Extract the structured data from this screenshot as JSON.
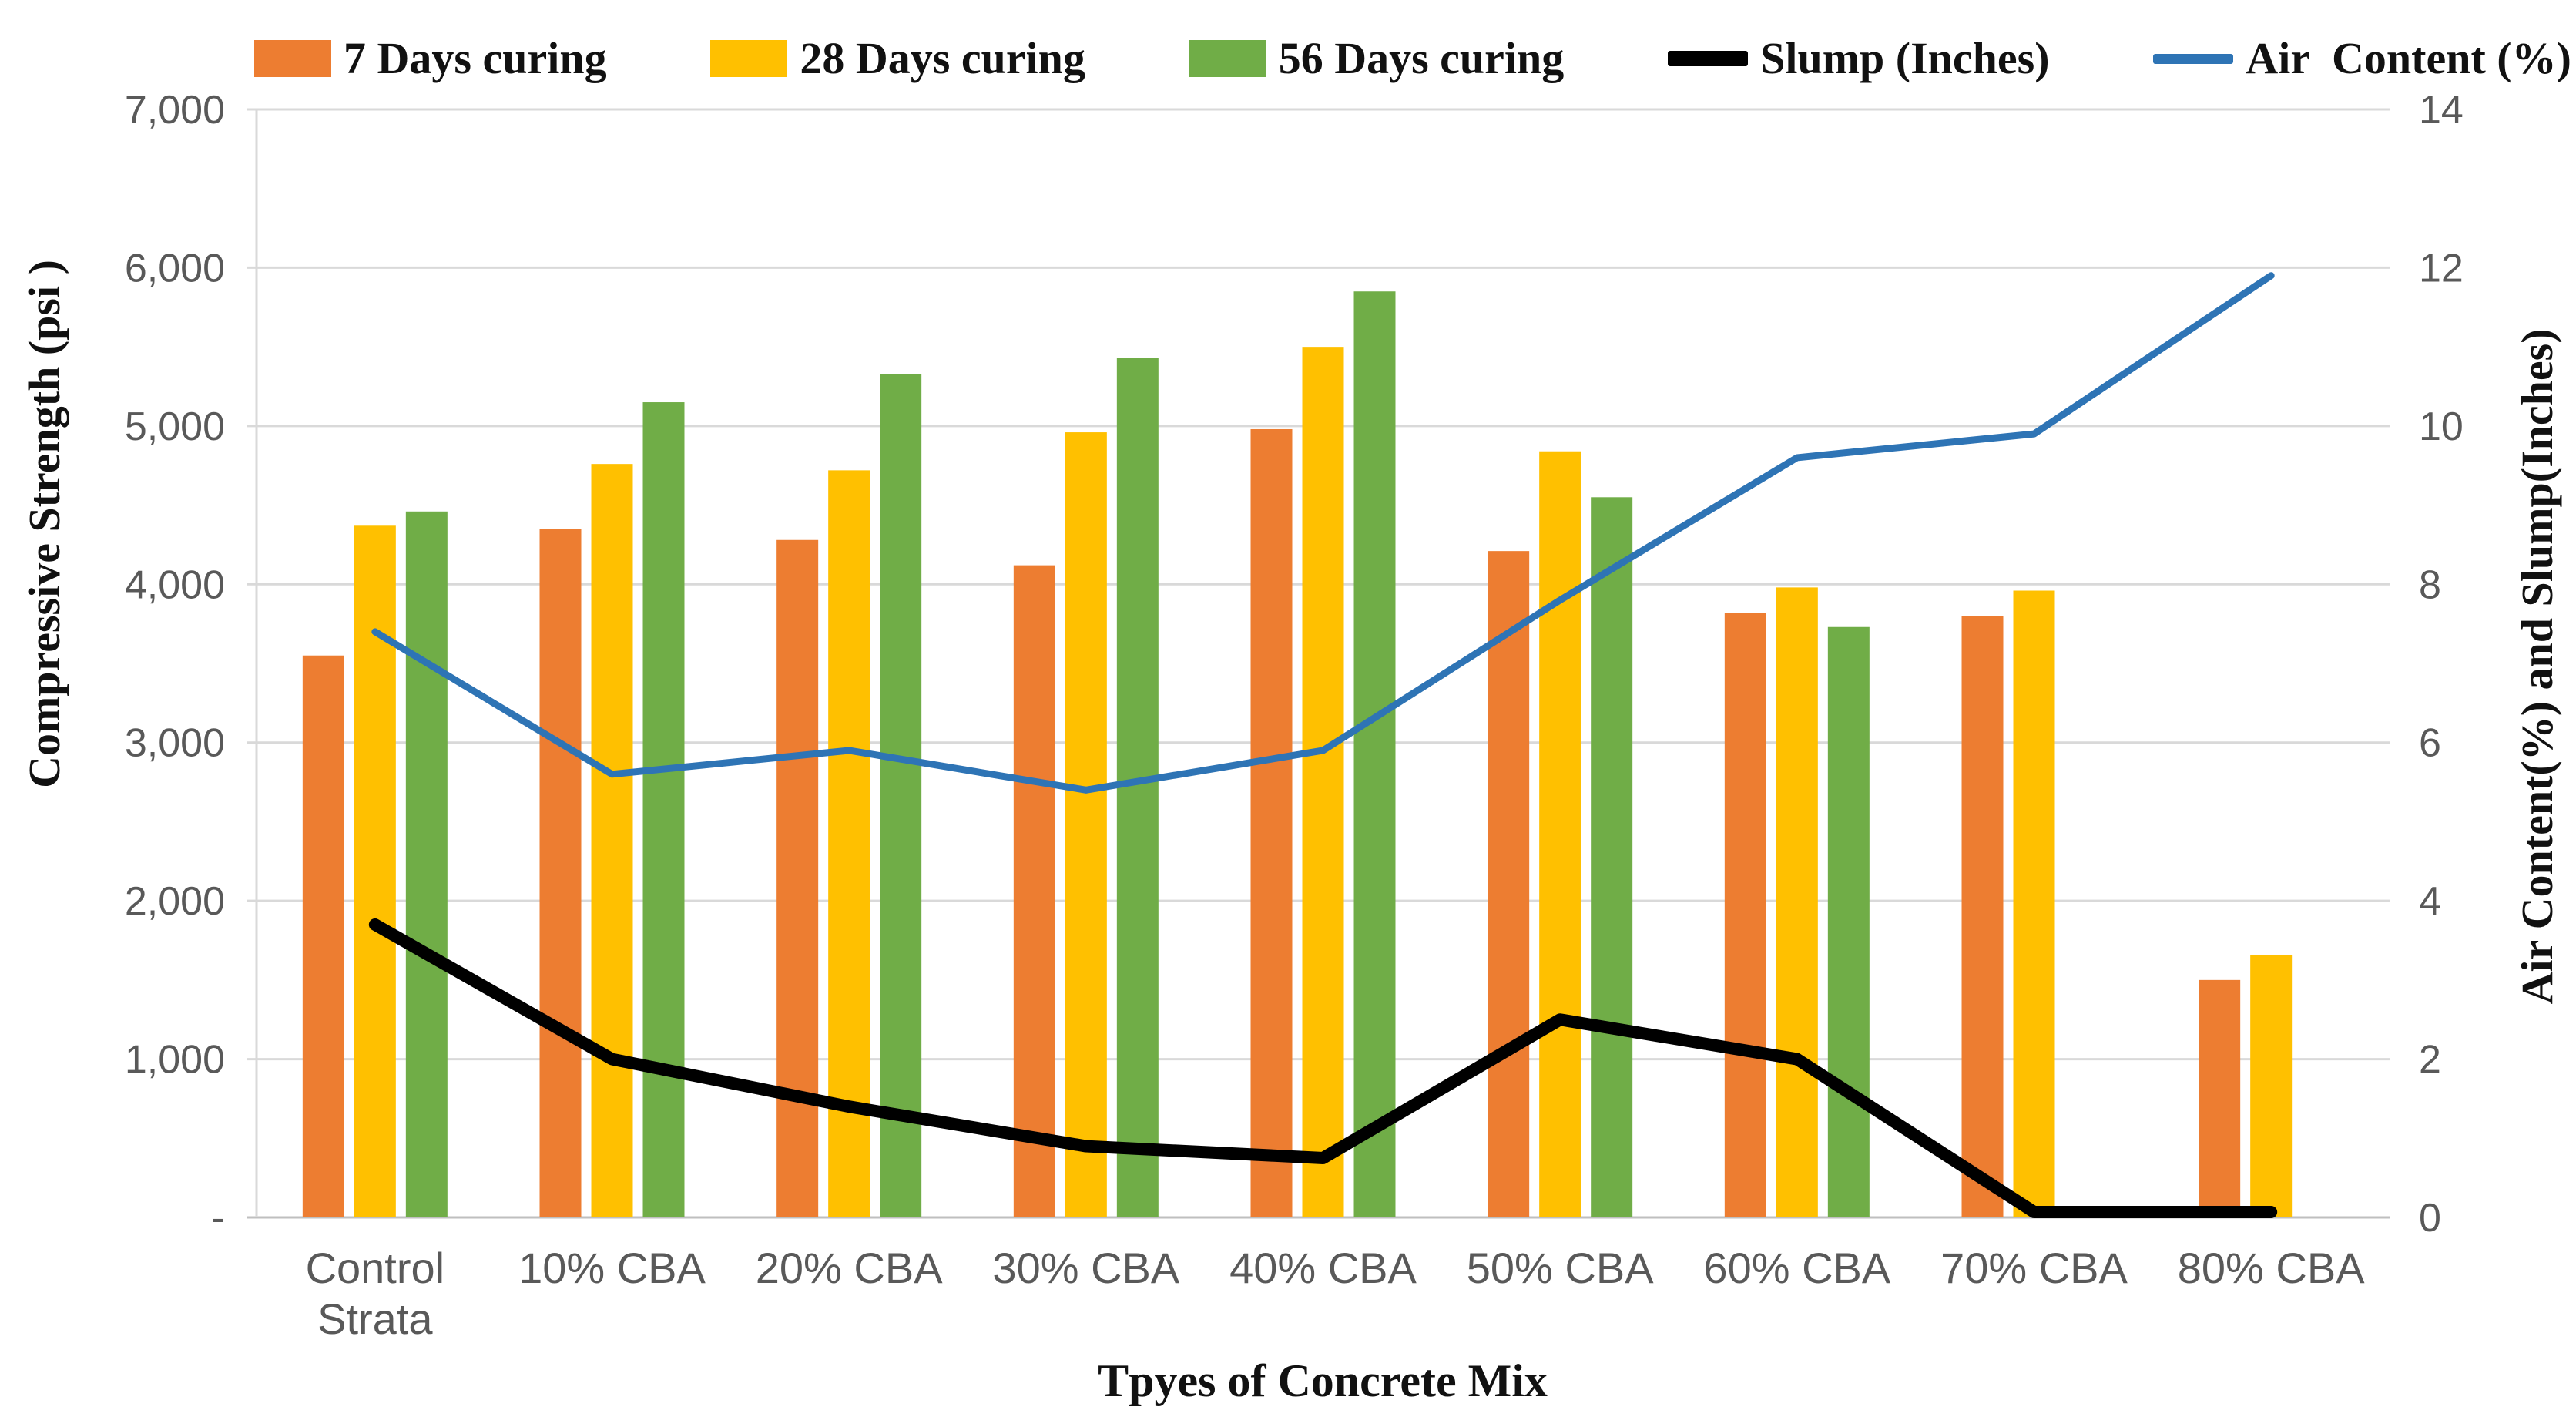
{
  "chart_data": {
    "type": "bar",
    "subtype": "grouped-bars-with-overlaid-lines",
    "categories": [
      "Control\nStrata",
      "10% CBA",
      "20% CBA",
      "30% CBA",
      "40% CBA",
      "50% CBA",
      "60% CBA",
      "70% CBA",
      "80% CBA"
    ],
    "series": [
      {
        "name": "7 Days curing",
        "type": "bar",
        "axis": "left",
        "color": "#ED7D31",
        "values": [
          3550,
          4350,
          4280,
          4120,
          4980,
          4210,
          3820,
          3800,
          1500
        ]
      },
      {
        "name": "28 Days curing",
        "type": "bar",
        "axis": "left",
        "color": "#FFC000",
        "values": [
          4370,
          4760,
          4720,
          4960,
          5500,
          4840,
          3980,
          3960,
          1660
        ]
      },
      {
        "name": "56 Days curing",
        "type": "bar",
        "axis": "left",
        "color": "#70AD47",
        "values": [
          4460,
          5150,
          5330,
          5430,
          5850,
          4550,
          3730,
          0,
          0
        ]
      },
      {
        "name": "Slump (Inches)",
        "type": "line",
        "axis": "right",
        "color": "#000000",
        "thickness": 16,
        "values": [
          3.7,
          2.0,
          1.4,
          0.9,
          0.75,
          2.5,
          2.0,
          0,
          0
        ]
      },
      {
        "name": "Air  Content (%)",
        "type": "line",
        "axis": "right",
        "color": "#2E74B5",
        "thickness": 9,
        "values": [
          7.4,
          5.6,
          5.9,
          5.4,
          5.9,
          7.8,
          9.6,
          9.9,
          11.9
        ]
      }
    ],
    "left_axis": {
      "title": "Compressive Strength (psi )",
      "min": 0,
      "max": 7000,
      "step": 1000,
      "tick_labels": [
        "-",
        "1,000",
        "2,000",
        "3,000",
        "4,000",
        "5,000",
        "6,000",
        "7,000"
      ]
    },
    "right_axis": {
      "title": "Air Content(%) and Slump(Inches)",
      "min": 0,
      "max": 14,
      "step": 2,
      "tick_labels": [
        "0",
        "2",
        "4",
        "6",
        "8",
        "10",
        "12",
        "14"
      ]
    },
    "x_axis": {
      "title": "Tpyes of Concrete Mix"
    },
    "grid": "horizontal-only",
    "legend_position": "top",
    "colors": {
      "grid": "#D9D9D9",
      "axis_line": "#BFBFBF",
      "tick_text": "#595959"
    }
  }
}
